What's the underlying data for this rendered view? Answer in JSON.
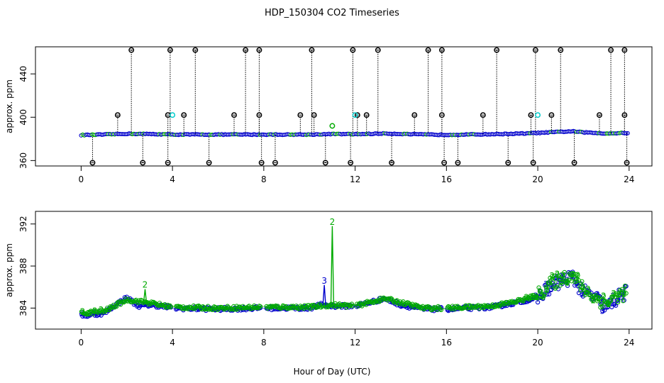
{
  "chart_data": [
    {
      "type": "scatter",
      "title": "HDP_150304  CO2 Timeseries",
      "xlabel": "",
      "ylabel": "approx. ppm",
      "xlim": [
        -2,
        25
      ],
      "ylim": [
        355,
        465
      ],
      "xticks": [
        0,
        4,
        8,
        12,
        16,
        20,
        24
      ],
      "yticks": [
        360,
        400,
        440
      ],
      "baseline": {
        "name": "series 3 (blue)",
        "color": "#0000cc",
        "knots_x": [
          0,
          1,
          2,
          3,
          4,
          6,
          8,
          10,
          11,
          12,
          13.3,
          15,
          16,
          18,
          19.5,
          20,
          21,
          21.5,
          22,
          23,
          23.9
        ],
        "knots_y": [
          383.5,
          384.0,
          384.7,
          384.5,
          384.0,
          384.0,
          384.0,
          384.0,
          384.5,
          384.3,
          385.0,
          384.0,
          383.8,
          384.3,
          385.0,
          385.5,
          386.5,
          387.0,
          386.0,
          385.0,
          385.5
        ]
      },
      "spikes": [
        {
          "name": "high outliers",
          "color": "#000000",
          "y": 462,
          "x": [
            2.2,
            3.9,
            5.0,
            7.2,
            7.8,
            10.1,
            11.9,
            13.0,
            15.2,
            15.8,
            18.2,
            19.9,
            21.0,
            23.2,
            23.8
          ]
        },
        {
          "name": "low outliers",
          "color": "#000000",
          "y": 358,
          "x": [
            0.5,
            2.7,
            3.8,
            5.6,
            7.9,
            8.5,
            10.7,
            11.8,
            13.6,
            15.9,
            16.5,
            18.7,
            19.8,
            21.6,
            23.9
          ]
        },
        {
          "name": "mid outliers",
          "color": "#000000",
          "y": 402,
          "x": [
            1.6,
            3.8,
            4.5,
            6.7,
            7.8,
            9.6,
            10.2,
            12.1,
            12.5,
            14.6,
            15.8,
            17.6,
            19.7,
            20.6,
            22.7,
            23.8
          ]
        },
        {
          "name": "cyan flags",
          "color": "#00cccc",
          "y": 402,
          "x": [
            4.0,
            12.0,
            20.0
          ]
        },
        {
          "name": "green flags",
          "color": "#00aa00",
          "y": 392,
          "x": [
            11.0
          ]
        }
      ]
    },
    {
      "type": "scatter",
      "title": "",
      "xlabel": "Hour of Day (UTC)",
      "ylabel": "approx. ppm",
      "xlim": [
        -2,
        25
      ],
      "ylim": [
        382,
        393.2
      ],
      "xticks": [
        0,
        4,
        8,
        12,
        16,
        20,
        24
      ],
      "yticks": [
        384,
        388,
        392
      ],
      "series": [
        {
          "name": "3",
          "color": "#0000cc",
          "knots_x": [
            0,
            0.5,
            1,
            1.5,
            2,
            2.5,
            3,
            3.5,
            4,
            6,
            8,
            10,
            10.5,
            11,
            12,
            13.3,
            14,
            15,
            16,
            17,
            18,
            19,
            20,
            20.5,
            21,
            21.5,
            22,
            22.5,
            23,
            23.5,
            23.9
          ],
          "knots_y": [
            383.3,
            383.4,
            383.5,
            384.3,
            385.0,
            384.2,
            384.3,
            384.2,
            384.0,
            383.9,
            384.0,
            384.0,
            384.3,
            384.2,
            384.2,
            384.9,
            384.3,
            383.9,
            383.9,
            384.0,
            384.1,
            384.5,
            385.0,
            386.0,
            386.5,
            387.0,
            385.5,
            385.0,
            384.0,
            385.0,
            385.5
          ]
        },
        {
          "name": "2",
          "color": "#00aa00",
          "knots_x": [
            0,
            1,
            2,
            3,
            4,
            6,
            8,
            10,
            11,
            12,
            13.3,
            15,
            16,
            18,
            19,
            20,
            20.5,
            21,
            21.5,
            22,
            22.5,
            23,
            23.5,
            23.9
          ],
          "knots_y": [
            383.5,
            383.7,
            384.8,
            384.5,
            384.1,
            384.0,
            384.1,
            384.1,
            384.3,
            384.2,
            384.9,
            384.0,
            384.0,
            384.2,
            384.6,
            385.2,
            386.2,
            386.8,
            387.2,
            385.8,
            385.0,
            384.5,
            385.2,
            385.5
          ]
        }
      ],
      "peaks": [
        {
          "series": "3",
          "x": [
            10.65
          ],
          "y": [
            386.2
          ]
        },
        {
          "series": "2",
          "x": [
            11.0
          ],
          "y": [
            391.8
          ]
        },
        {
          "series": "2",
          "x": [
            2.8
          ],
          "y": [
            385.8
          ]
        }
      ],
      "gaps": [
        [
          3.95,
          4.15
        ],
        [
          7.85,
          8.1
        ],
        [
          11.9,
          12.05
        ],
        [
          15.8,
          16.0
        ]
      ]
    }
  ]
}
